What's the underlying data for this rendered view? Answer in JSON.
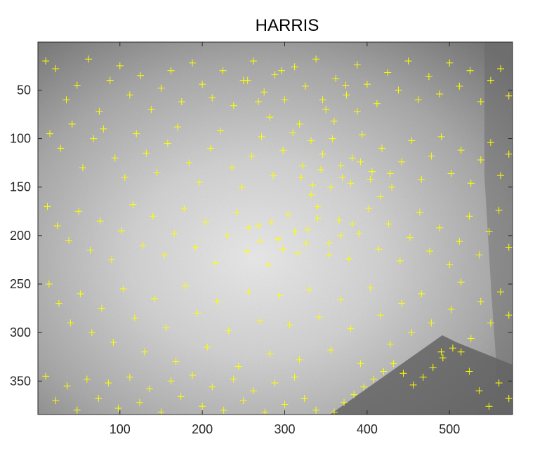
{
  "chart_data": {
    "type": "scatter",
    "title": "HARRIS",
    "xlabel": "",
    "ylabel": "",
    "xlim": [
      0.5,
      576.5
    ],
    "ylim": [
      0.5,
      384.5
    ],
    "y_reversed": true,
    "x_ticks": [
      100,
      200,
      300,
      400,
      500
    ],
    "x_tick_labels": [
      "100",
      "200",
      "300",
      "400",
      "500"
    ],
    "y_ticks": [
      50,
      100,
      150,
      200,
      250,
      300,
      350
    ],
    "y_tick_labels": [
      "50",
      "100",
      "150",
      "200",
      "250",
      "300",
      "350"
    ],
    "grid": false,
    "background": "grayscale photograph, bright at center and darker toward edges, with a dark diagonal edge from (360,384) to (510,305)",
    "series": [
      {
        "marker": "+",
        "color": "#ffff00",
        "points": [
          [
            10,
            20
          ],
          [
            22,
            28
          ],
          [
            35,
            60
          ],
          [
            48,
            45
          ],
          [
            62,
            18
          ],
          [
            75,
            72
          ],
          [
            88,
            40
          ],
          [
            100,
            25
          ],
          [
            112,
            55
          ],
          [
            125,
            35
          ],
          [
            138,
            70
          ],
          [
            150,
            48
          ],
          [
            162,
            30
          ],
          [
            175,
            62
          ],
          [
            188,
            22
          ],
          [
            200,
            44
          ],
          [
            212,
            58
          ],
          [
            225,
            30
          ],
          [
            238,
            66
          ],
          [
            250,
            40
          ],
          [
            262,
            20
          ],
          [
            275,
            52
          ],
          [
            288,
            34
          ],
          [
            300,
            60
          ],
          [
            312,
            26
          ],
          [
            325,
            46
          ],
          [
            338,
            18
          ],
          [
            350,
            70
          ],
          [
            362,
            38
          ],
          [
            375,
            55
          ],
          [
            388,
            24
          ],
          [
            400,
            44
          ],
          [
            412,
            64
          ],
          [
            425,
            32
          ],
          [
            438,
            50
          ],
          [
            450,
            20
          ],
          [
            462,
            60
          ],
          [
            475,
            36
          ],
          [
            488,
            54
          ],
          [
            500,
            22
          ],
          [
            512,
            46
          ],
          [
            525,
            30
          ],
          [
            538,
            62
          ],
          [
            550,
            40
          ],
          [
            562,
            28
          ],
          [
            572,
            56
          ],
          [
            15,
            95
          ],
          [
            28,
            110
          ],
          [
            42,
            85
          ],
          [
            55,
            130
          ],
          [
            68,
            100
          ],
          [
            80,
            90
          ],
          [
            94,
            120
          ],
          [
            106,
            140
          ],
          [
            120,
            95
          ],
          [
            132,
            115
          ],
          [
            145,
            135
          ],
          [
            158,
            105
          ],
          [
            170,
            88
          ],
          [
            184,
            125
          ],
          [
            196,
            145
          ],
          [
            210,
            110
          ],
          [
            222,
            92
          ],
          [
            236,
            130
          ],
          [
            248,
            150
          ],
          [
            260,
            118
          ],
          [
            272,
            98
          ],
          [
            286,
            138
          ],
          [
            298,
            112
          ],
          [
            310,
            94
          ],
          [
            322,
            128
          ],
          [
            334,
            148
          ],
          [
            346,
            116
          ],
          [
            358,
            100
          ],
          [
            370,
            140
          ],
          [
            382,
            120
          ],
          [
            394,
            96
          ],
          [
            406,
            134
          ],
          [
            418,
            110
          ],
          [
            430,
            150
          ],
          [
            442,
            124
          ],
          [
            454,
            102
          ],
          [
            466,
            142
          ],
          [
            478,
            118
          ],
          [
            490,
            98
          ],
          [
            502,
            136
          ],
          [
            514,
            112
          ],
          [
            526,
            146
          ],
          [
            538,
            122
          ],
          [
            550,
            104
          ],
          [
            562,
            138
          ],
          [
            572,
            116
          ],
          [
            12,
            170
          ],
          [
            24,
            190
          ],
          [
            38,
            205
          ],
          [
            50,
            175
          ],
          [
            64,
            215
          ],
          [
            76,
            185
          ],
          [
            90,
            225
          ],
          [
            102,
            195
          ],
          [
            116,
            168
          ],
          [
            128,
            210
          ],
          [
            140,
            180
          ],
          [
            154,
            220
          ],
          [
            166,
            198
          ],
          [
            178,
            172
          ],
          [
            192,
            212
          ],
          [
            204,
            186
          ],
          [
            216,
            228
          ],
          [
            230,
            200
          ],
          [
            242,
            176
          ],
          [
            254,
            216
          ],
          [
            268,
            190
          ],
          [
            280,
            230
          ],
          [
            292,
            204
          ],
          [
            304,
            178
          ],
          [
            316,
            218
          ],
          [
            328,
            194
          ],
          [
            340,
            170
          ],
          [
            354,
            208
          ],
          [
            366,
            184
          ],
          [
            378,
            224
          ],
          [
            390,
            198
          ],
          [
            402,
            172
          ],
          [
            414,
            214
          ],
          [
            426,
            188
          ],
          [
            440,
            226
          ],
          [
            452,
            202
          ],
          [
            464,
            176
          ],
          [
            476,
            216
          ],
          [
            488,
            192
          ],
          [
            500,
            230
          ],
          [
            512,
            206
          ],
          [
            524,
            180
          ],
          [
            536,
            220
          ],
          [
            548,
            196
          ],
          [
            560,
            174
          ],
          [
            572,
            212
          ],
          [
            14,
            250
          ],
          [
            26,
            270
          ],
          [
            40,
            290
          ],
          [
            52,
            260
          ],
          [
            66,
            300
          ],
          [
            78,
            275
          ],
          [
            92,
            310
          ],
          [
            104,
            255
          ],
          [
            118,
            285
          ],
          [
            130,
            320
          ],
          [
            142,
            265
          ],
          [
            156,
            295
          ],
          [
            168,
            330
          ],
          [
            180,
            252
          ],
          [
            194,
            280
          ],
          [
            206,
            315
          ],
          [
            218,
            268
          ],
          [
            232,
            298
          ],
          [
            244,
            335
          ],
          [
            256,
            258
          ],
          [
            270,
            288
          ],
          [
            282,
            322
          ],
          [
            294,
            262
          ],
          [
            306,
            292
          ],
          [
            318,
            328
          ],
          [
            330,
            256
          ],
          [
            342,
            284
          ],
          [
            356,
            318
          ],
          [
            368,
            266
          ],
          [
            380,
            296
          ],
          [
            392,
            332
          ],
          [
            404,
            254
          ],
          [
            416,
            282
          ],
          [
            428,
            312
          ],
          [
            442,
            270
          ],
          [
            454,
            300
          ],
          [
            466,
            260
          ],
          [
            478,
            290
          ],
          [
            490,
            320
          ],
          [
            502,
            276
          ],
          [
            514,
            248
          ],
          [
            526,
            306
          ],
          [
            538,
            268
          ],
          [
            550,
            290
          ],
          [
            562,
            258
          ],
          [
            572,
            282
          ],
          [
            10,
            345
          ],
          [
            22,
            370
          ],
          [
            36,
            355
          ],
          [
            48,
            380
          ],
          [
            60,
            348
          ],
          [
            74,
            368
          ],
          [
            86,
            352
          ],
          [
            98,
            378
          ],
          [
            112,
            346
          ],
          [
            124,
            372
          ],
          [
            136,
            358
          ],
          [
            150,
            382
          ],
          [
            162,
            350
          ],
          [
            174,
            366
          ],
          [
            188,
            344
          ],
          [
            200,
            376
          ],
          [
            212,
            356
          ],
          [
            226,
            380
          ],
          [
            238,
            348
          ],
          [
            250,
            370
          ],
          [
            262,
            360
          ],
          [
            276,
            382
          ],
          [
            288,
            352
          ],
          [
            300,
            374
          ],
          [
            312,
            346
          ],
          [
            324,
            368
          ],
          [
            338,
            380
          ],
          [
            360,
            382
          ],
          [
            372,
            372
          ],
          [
            384,
            364
          ],
          [
            396,
            356
          ],
          [
            408,
            348
          ],
          [
            420,
            340
          ],
          [
            432,
            332
          ],
          [
            444,
            342
          ],
          [
            456,
            354
          ],
          [
            468,
            346
          ],
          [
            480,
            336
          ],
          [
            492,
            326
          ],
          [
            504,
            316
          ],
          [
            514,
            320
          ],
          [
            524,
            340
          ],
          [
            536,
            360
          ],
          [
            548,
            376
          ],
          [
            560,
            352
          ],
          [
            572,
            368
          ],
          [
            255,
            40
          ],
          [
            268,
            62
          ],
          [
            282,
            78
          ],
          [
            296,
            30
          ],
          [
            318,
            85
          ],
          [
            332,
            102
          ],
          [
            346,
            60
          ],
          [
            360,
            82
          ],
          [
            374,
            45
          ],
          [
            388,
            72
          ],
          [
            256,
            192
          ],
          [
            270,
            205
          ],
          [
            284,
            186
          ],
          [
            298,
            214
          ],
          [
            312,
            196
          ],
          [
            326,
            208
          ],
          [
            340,
            182
          ],
          [
            354,
            220
          ],
          [
            368,
            200
          ],
          [
            382,
            188
          ],
          [
            320,
            140
          ],
          [
            332,
            158
          ],
          [
            344,
            132
          ],
          [
            356,
            150
          ],
          [
            368,
            128
          ],
          [
            380,
            146
          ],
          [
            392,
            124
          ],
          [
            404,
            142
          ],
          [
            416,
            160
          ],
          [
            428,
            136
          ]
        ]
      }
    ]
  }
}
